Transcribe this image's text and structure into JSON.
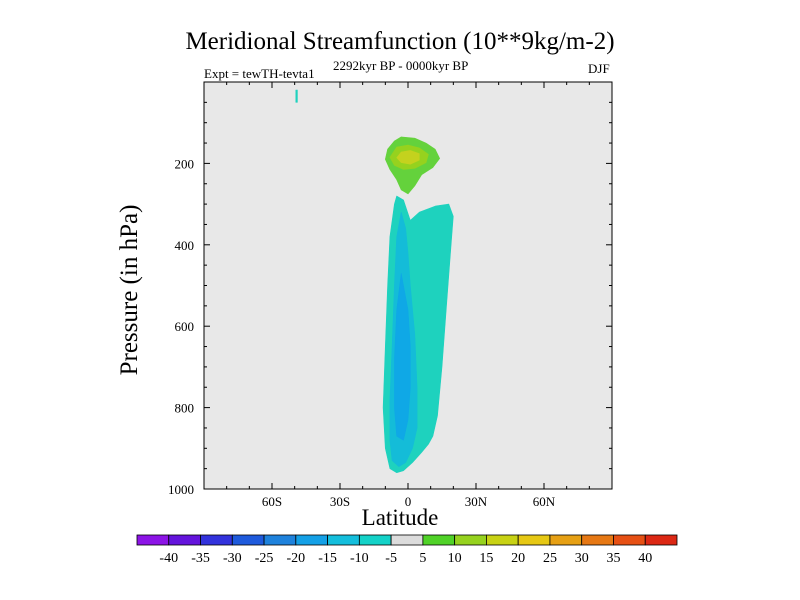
{
  "header": {
    "title": "Meridional Streamfunction (10**9kg/m-2)",
    "experiment": "Expt = tewTH-tevta1",
    "period": "2292kyr BP - 0000kyr BP",
    "season": "DJF"
  },
  "chart_data": {
    "type": "heatmap",
    "title": "Meridional Streamfunction (10**9kg/m-2)",
    "xlabel": "Latitude",
    "ylabel": "Pressure (in hPa)",
    "xlim": [
      -90,
      90
    ],
    "ylim": [
      0,
      1000
    ],
    "y_inverted": true,
    "xticks": [
      {
        "value": -60,
        "label": "60S"
      },
      {
        "value": -30,
        "label": "30S"
      },
      {
        "value": 0,
        "label": "0"
      },
      {
        "value": 30,
        "label": "30N"
      },
      {
        "value": 60,
        "label": "60N"
      }
    ],
    "yticks": [
      {
        "value": 200,
        "label": "200"
      },
      {
        "value": 400,
        "label": "400"
      },
      {
        "value": 600,
        "label": "600"
      },
      {
        "value": 800,
        "label": "800"
      },
      {
        "value": 1000,
        "label": "1000"
      }
    ],
    "background_color": "#e8e8e8",
    "contour_regions": [
      {
        "name": "negative-cell-outer",
        "level": "-10 to -5",
        "color": "#1ed2be",
        "points": [
          [
            -5,
            280
          ],
          [
            -2,
            290
          ],
          [
            1,
            340
          ],
          [
            5,
            320
          ],
          [
            12,
            305
          ],
          [
            18,
            300
          ],
          [
            20,
            330
          ],
          [
            19,
            400
          ],
          [
            17,
            550
          ],
          [
            15,
            700
          ],
          [
            13,
            820
          ],
          [
            11,
            870
          ],
          [
            9,
            890
          ],
          [
            6,
            910
          ],
          [
            2,
            935
          ],
          [
            -2,
            955
          ],
          [
            -5,
            960
          ],
          [
            -8,
            950
          ],
          [
            -10,
            900
          ],
          [
            -11,
            800
          ],
          [
            -10,
            650
          ],
          [
            -9,
            500
          ],
          [
            -8,
            380
          ],
          [
            -6,
            300
          ]
        ]
      },
      {
        "name": "negative-cell-mid",
        "level": "-15 to -10",
        "color": "#14bcd8",
        "points": [
          [
            -3,
            320
          ],
          [
            -1,
            360
          ],
          [
            0,
            420
          ],
          [
            1,
            500
          ],
          [
            3,
            620
          ],
          [
            4,
            750
          ],
          [
            4,
            850
          ],
          [
            2,
            900
          ],
          [
            -1,
            935
          ],
          [
            -4,
            945
          ],
          [
            -7,
            930
          ],
          [
            -8,
            880
          ],
          [
            -8,
            780
          ],
          [
            -7,
            650
          ],
          [
            -6,
            500
          ],
          [
            -5,
            380
          ]
        ]
      },
      {
        "name": "negative-cell-core",
        "level": "-20 to -15",
        "color": "#0fa8e6",
        "points": [
          [
            -3,
            470
          ],
          [
            0,
            560
          ],
          [
            1,
            650
          ],
          [
            1,
            750
          ],
          [
            0,
            830
          ],
          [
            -2,
            880
          ],
          [
            -5,
            870
          ],
          [
            -6,
            800
          ],
          [
            -6,
            680
          ],
          [
            -5,
            560
          ]
        ]
      },
      {
        "name": "positive-cell-outer",
        "level": "5 to 10",
        "color": "#64d23c",
        "points": [
          [
            -6,
            145
          ],
          [
            -3,
            135
          ],
          [
            3,
            138
          ],
          [
            8,
            150
          ],
          [
            12,
            165
          ],
          [
            14,
            188
          ],
          [
            11,
            210
          ],
          [
            6,
            228
          ],
          [
            3,
            255
          ],
          [
            0,
            275
          ],
          [
            -3,
            265
          ],
          [
            -5,
            240
          ],
          [
            -8,
            215
          ],
          [
            -10,
            190
          ],
          [
            -9,
            165
          ]
        ]
      },
      {
        "name": "positive-cell-inner",
        "level": "10 to 15",
        "color": "#96d21e",
        "points": [
          [
            -5,
            160
          ],
          [
            0,
            155
          ],
          [
            5,
            162
          ],
          [
            9,
            178
          ],
          [
            8,
            198
          ],
          [
            3,
            212
          ],
          [
            -2,
            215
          ],
          [
            -6,
            205
          ],
          [
            -8,
            185
          ]
        ]
      },
      {
        "name": "positive-cell-core",
        "level": "15 to 20",
        "color": "#c4d21e",
        "points": [
          [
            -3,
            172
          ],
          [
            1,
            168
          ],
          [
            5,
            176
          ],
          [
            5,
            192
          ],
          [
            1,
            202
          ],
          [
            -3,
            198
          ],
          [
            -5,
            186
          ]
        ]
      },
      {
        "name": "small-negative-patch",
        "level": "-10 to -5",
        "color": "#1ed2be",
        "points": [
          [
            -49.5,
            20
          ],
          [
            -48.8,
            20
          ],
          [
            -48.8,
            50
          ],
          [
            -49.5,
            50
          ]
        ]
      }
    ],
    "colorbar": {
      "labels": [
        "-40",
        "-35",
        "-30",
        "-25",
        "-20",
        "-15",
        "-10",
        "-5",
        "5",
        "10",
        "15",
        "20",
        "25",
        "30",
        "35",
        "40"
      ],
      "colors": [
        "#8c14e6",
        "#6414dc",
        "#3232dc",
        "#1e5adc",
        "#1e82dc",
        "#14a0e6",
        "#14bedc",
        "#14d2c8",
        "#dcdcdc",
        "#50d228",
        "#96d21e",
        "#c8d214",
        "#e6c814",
        "#e6a014",
        "#e67814",
        "#e65014",
        "#dc2814"
      ]
    }
  }
}
